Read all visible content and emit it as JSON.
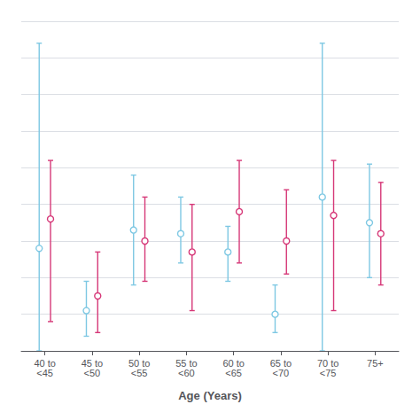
{
  "chart_data": {
    "type": "scatter",
    "xlabel": "Age (Years)",
    "categories": [
      "40 to\n<45",
      "45 to\n<50",
      "50 to\n<55",
      "55 to\n<60",
      "60 to\n<65",
      "65 to\n<70",
      "70 to\n<75",
      "75+"
    ],
    "series": [
      {
        "color": "#7EC8E3",
        "marker": "circle",
        "values": [
          14.0,
          5.5,
          16.5,
          16.0,
          13.5,
          5.0,
          21.0,
          17.5
        ],
        "lo": [
          0.0,
          2.0,
          9.0,
          12.0,
          9.5,
          2.5,
          0.0,
          10.0
        ],
        "hi": [
          42.0,
          9.5,
          24.0,
          21.0,
          17.0,
          9.0,
          42.0,
          25.5
        ]
      },
      {
        "color": "#D63878",
        "marker": "circle",
        "values": [
          18.0,
          7.5,
          15.0,
          13.5,
          19.0,
          15.0,
          18.5,
          16.0
        ],
        "lo": [
          4.0,
          2.5,
          9.5,
          5.5,
          12.0,
          10.5,
          5.5,
          9.0
        ],
        "hi": [
          26.0,
          13.5,
          21.0,
          20.0,
          26.0,
          22.0,
          26.0,
          23.0
        ]
      }
    ],
    "ylim": [
      0,
      45
    ],
    "yticks": [
      0,
      5,
      10,
      15,
      20,
      25,
      30,
      35,
      40,
      45
    ],
    "grid": true,
    "tick_labels": "x"
  }
}
